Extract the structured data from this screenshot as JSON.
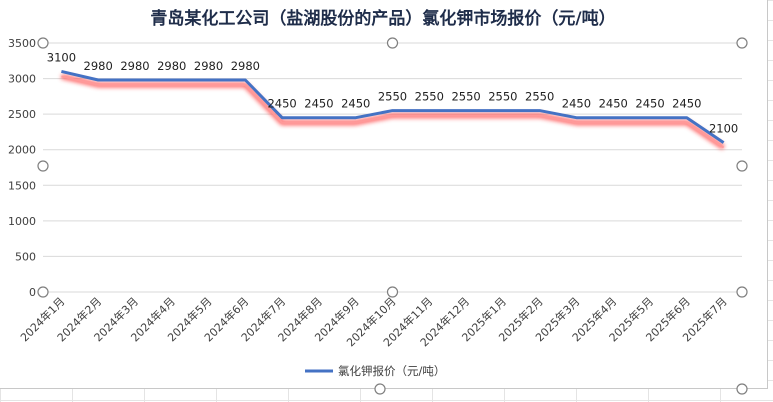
{
  "chart_data": {
    "type": "line",
    "title": "青岛某化工公司（盐湖股份的产品）氯化钾市场报价（元/吨）",
    "categories": [
      "2024年1月",
      "2024年2月",
      "2024年3月",
      "2024年4月",
      "2024年5月",
      "2024年6月",
      "2024年7月",
      "2024年8月",
      "2024年9月",
      "2024年10月",
      "2024年11月",
      "2024年12月",
      "2025年1月",
      "2025年2月",
      "2025年3月",
      "2025年4月",
      "2025年5月",
      "2025年6月",
      "2025年7月"
    ],
    "series": [
      {
        "name": "氯化钾报价（元/吨）",
        "values": [
          3100,
          2980,
          2980,
          2980,
          2980,
          2980,
          2450,
          2450,
          2450,
          2550,
          2550,
          2550,
          2550,
          2550,
          2450,
          2450,
          2450,
          2450,
          2100
        ],
        "color": "#4472c4",
        "glow_color": "#ff4d4d"
      }
    ],
    "ylim": [
      0,
      3500
    ],
    "yticks": [
      0,
      500,
      1000,
      1500,
      2000,
      2500,
      3000,
      3500
    ],
    "grid": true,
    "legend": "bottom",
    "data_labels": true
  }
}
